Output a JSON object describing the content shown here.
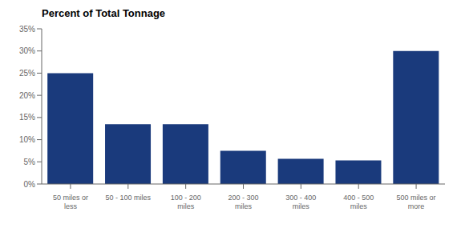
{
  "chart_data": {
    "type": "bar",
    "title": "Percent of Total Tonnage",
    "categories": [
      "50 miles or\nless",
      "50 - 100 miles",
      "100 - 200\nmiles",
      "200 - 300\nmiles",
      "300 - 400\nmiles",
      "400 - 500\nmiles",
      "500 miles or\nmore"
    ],
    "values": [
      25.0,
      13.5,
      13.5,
      7.5,
      5.7,
      5.3,
      30.0
    ],
    "color": "#1a3a7c",
    "ylim": [
      0,
      35
    ],
    "yticks": [
      {
        "value": 0,
        "label": "0%"
      },
      {
        "value": 5,
        "label": "5%"
      },
      {
        "value": 10,
        "label": "10%"
      },
      {
        "value": 15,
        "label": "15%"
      },
      {
        "value": 20,
        "label": "20%"
      },
      {
        "value": 25,
        "label": "25%"
      },
      {
        "value": 30,
        "label": "30%"
      },
      {
        "value": 35,
        "label": "35%"
      }
    ],
    "grid": false
  }
}
